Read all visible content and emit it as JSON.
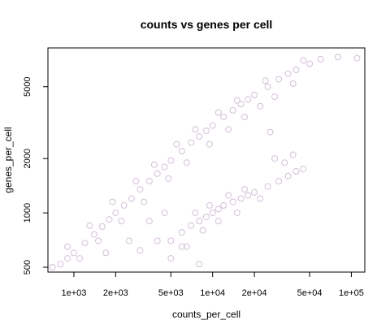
{
  "chart_data": {
    "type": "scatter",
    "title": "counts vs genes per cell",
    "xlabel": "counts_per_cell",
    "ylabel": "genes_per_cell",
    "x_scale": "log",
    "y_scale": "log",
    "xlim": [
      650,
      125000
    ],
    "ylim": [
      470,
      8200
    ],
    "x_ticks": [
      1000,
      2000,
      5000,
      10000,
      20000,
      50000,
      100000
    ],
    "x_tick_labels": [
      "1e+03",
      "2e+03",
      "5e+03",
      "1e+04",
      "2e+04",
      "5e+04",
      "1e+05"
    ],
    "y_ticks": [
      500,
      1000,
      2000,
      5000
    ],
    "y_tick_labels": [
      "500",
      "1000",
      "2000",
      "5000"
    ],
    "grid": false,
    "legend": "none",
    "point_color": "#D4BED9",
    "series": [
      {
        "population": "main",
        "points": [
          [
            700,
            500
          ],
          [
            800,
            520
          ],
          [
            900,
            560
          ],
          [
            1000,
            600
          ],
          [
            1200,
            680
          ],
          [
            1400,
            760
          ],
          [
            1600,
            840
          ],
          [
            1800,
            920
          ],
          [
            2000,
            1000
          ],
          [
            2300,
            1100
          ],
          [
            2600,
            1200
          ],
          [
            3000,
            1350
          ],
          [
            3500,
            1500
          ],
          [
            4000,
            1650
          ],
          [
            4500,
            1800
          ],
          [
            5000,
            1950
          ],
          [
            6000,
            2200
          ],
          [
            7000,
            2450
          ],
          [
            8000,
            2650
          ],
          [
            9000,
            2850
          ],
          [
            10000,
            3050
          ],
          [
            12000,
            3400
          ],
          [
            14000,
            3700
          ],
          [
            16000,
            4000
          ],
          [
            18000,
            4250
          ],
          [
            20000,
            4500
          ],
          [
            25000,
            5000
          ],
          [
            30000,
            5500
          ],
          [
            35000,
            5900
          ],
          [
            40000,
            6200
          ],
          [
            50000,
            6700
          ],
          [
            60000,
            7100
          ],
          [
            80000,
            7300
          ],
          [
            110000,
            7200
          ],
          [
            1100,
            560
          ],
          [
            1500,
            700
          ],
          [
            2200,
            900
          ],
          [
            3200,
            1150
          ],
          [
            4800,
            1550
          ],
          [
            6500,
            1900
          ],
          [
            9500,
            2400
          ],
          [
            13000,
            2900
          ],
          [
            17000,
            3400
          ],
          [
            22000,
            3900
          ],
          [
            28000,
            4400
          ],
          [
            38000,
            5200
          ],
          [
            900,
            650
          ],
          [
            1300,
            850
          ],
          [
            1900,
            1150
          ],
          [
            2800,
            1500
          ],
          [
            3800,
            1850
          ],
          [
            5500,
            2400
          ],
          [
            7500,
            2900
          ],
          [
            11000,
            3600
          ],
          [
            15000,
            4200
          ],
          [
            24000,
            5400
          ],
          [
            45000,
            7000
          ],
          [
            1700,
            600
          ],
          [
            2500,
            700
          ],
          [
            3000,
            620
          ],
          [
            4000,
            700
          ],
          [
            5000,
            560
          ],
          [
            6000,
            650
          ],
          [
            8000,
            520
          ],
          [
            3500,
            900
          ],
          [
            4500,
            1000
          ]
        ]
      },
      {
        "population": "secondary",
        "points": [
          [
            5000,
            700
          ],
          [
            6000,
            780
          ],
          [
            7000,
            850
          ],
          [
            8000,
            900
          ],
          [
            9000,
            950
          ],
          [
            10000,
            1000
          ],
          [
            11000,
            1050
          ],
          [
            12000,
            1100
          ],
          [
            14000,
            1150
          ],
          [
            16000,
            1200
          ],
          [
            18000,
            1250
          ],
          [
            20000,
            1300
          ],
          [
            25000,
            1400
          ],
          [
            30000,
            1500
          ],
          [
            35000,
            1600
          ],
          [
            40000,
            1700
          ],
          [
            28000,
            2000
          ],
          [
            38000,
            2100
          ],
          [
            7500,
            1000
          ],
          [
            9500,
            1100
          ],
          [
            13000,
            1250
          ],
          [
            17000,
            1350
          ],
          [
            22000,
            1200
          ],
          [
            8500,
            800
          ],
          [
            15000,
            1000
          ],
          [
            26000,
            2800
          ],
          [
            33000,
            1900
          ],
          [
            45000,
            1750
          ],
          [
            6500,
            650
          ],
          [
            11000,
            900
          ]
        ]
      }
    ]
  }
}
